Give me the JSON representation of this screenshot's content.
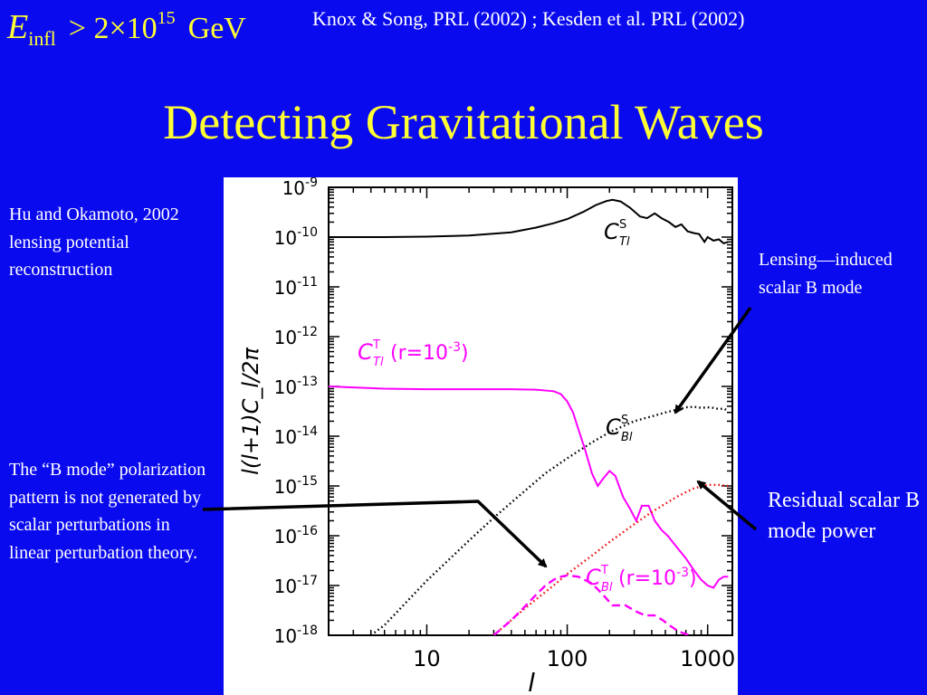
{
  "header": {
    "formula": {
      "symbol": "E",
      "subscript": "infl",
      "relation": "> 2×10",
      "exponent": "15",
      "unit": "GeV"
    },
    "citation": "Knox & Song, PRL (2002) ;  Kesden et al. PRL (2002)",
    "title": "Detecting Gravitational Waves"
  },
  "notes": {
    "hu_okamoto": "Hu and Okamoto, 2002 lensing potential reconstruction",
    "b_mode": " The “B mode” polarization pattern is not generated by scalar perturbations in linear perturbation theory.",
    "lensing": "Lensing—induced scalar B mode",
    "residual": "Residual scalar B mode power"
  },
  "colors": {
    "background": "#0a0aee",
    "title": "#ffff33",
    "text": "#ffffff",
    "black": "#000000",
    "magenta": "#ff00ff",
    "red": "#ee1111"
  },
  "chart_data": {
    "type": "line",
    "xlabel": "l",
    "ylabel": "l(l+1)C_l/2π",
    "xscale": "log",
    "yscale": "log",
    "xlim": [
      2,
      1500
    ],
    "ylim": [
      1e-18,
      1e-09
    ],
    "x_ticks": [
      {
        "value": 10,
        "label": "10"
      },
      {
        "value": 100,
        "label": "100"
      },
      {
        "value": 1000,
        "label": "1000"
      }
    ],
    "y_ticks": [
      {
        "value": 1e-09,
        "label": "10^-9"
      },
      {
        "value": 1e-10,
        "label": "10^-10"
      },
      {
        "value": 1e-11,
        "label": "10^-11"
      },
      {
        "value": 1e-12,
        "label": "10^-12"
      },
      {
        "value": 1e-13,
        "label": "10^-13"
      },
      {
        "value": 1e-14,
        "label": "10^-14"
      },
      {
        "value": 1e-15,
        "label": "10^-15"
      },
      {
        "value": 1e-16,
        "label": "10^-16"
      },
      {
        "value": 1e-17,
        "label": "10^-17"
      },
      {
        "value": 1e-18,
        "label": "10^-18"
      }
    ],
    "series": [
      {
        "key": "tt_scalar",
        "name": "C_Tl^S",
        "label_main": "C",
        "label_sup": "S",
        "label_sub": "Tl",
        "label_extra": "",
        "color": "#000000",
        "style": "solid",
        "points": [
          [
            2,
            1e-10
          ],
          [
            5,
            1e-10
          ],
          [
            10,
            1.02e-10
          ],
          [
            20,
            1.08e-10
          ],
          [
            40,
            1.25e-10
          ],
          [
            60,
            1.55e-10
          ],
          [
            80,
            1.9e-10
          ],
          [
            100,
            2.3e-10
          ],
          [
            130,
            3.2e-10
          ],
          [
            160,
            4.4e-10
          ],
          [
            190,
            5.3e-10
          ],
          [
            210,
            5.6e-10
          ],
          [
            240,
            5.2e-10
          ],
          [
            280,
            3.9e-10
          ],
          [
            330,
            2.6e-10
          ],
          [
            370,
            2.4e-10
          ],
          [
            420,
            3e-10
          ],
          [
            470,
            2.4e-10
          ],
          [
            530,
            2e-10
          ],
          [
            590,
            1.6e-10
          ],
          [
            650,
            1.8e-10
          ],
          [
            720,
            1.3e-10
          ],
          [
            800,
            1.2e-10
          ],
          [
            870,
            1.15e-10
          ],
          [
            950,
            8e-11
          ],
          [
            1000,
            1e-10
          ],
          [
            1100,
            8.5e-11
          ],
          [
            1200,
            9e-11
          ],
          [
            1300,
            7.5e-11
          ],
          [
            1400,
            8e-11
          ]
        ]
      },
      {
        "key": "tt_tensor",
        "name": "C_Tl^T (r=10^-3)",
        "label_main": "C",
        "label_sup": "T",
        "label_sub": "Tl",
        "label_extra": "(r=10^-3)",
        "color": "#ff00ff",
        "style": "solid",
        "points": [
          [
            2,
            1e-13
          ],
          [
            5,
            9e-14
          ],
          [
            10,
            8.8e-14
          ],
          [
            20,
            8.8e-14
          ],
          [
            40,
            8.8e-14
          ],
          [
            60,
            8.6e-14
          ],
          [
            80,
            8e-14
          ],
          [
            90,
            7e-14
          ],
          [
            100,
            5e-14
          ],
          [
            110,
            3e-14
          ],
          [
            120,
            1.4e-14
          ],
          [
            135,
            5e-15
          ],
          [
            150,
            1.8e-15
          ],
          [
            165,
            1e-15
          ],
          [
            180,
            1.4e-15
          ],
          [
            200,
            2e-15
          ],
          [
            220,
            1.6e-15
          ],
          [
            250,
            6e-16
          ],
          [
            280,
            3.5e-16
          ],
          [
            310,
            2e-16
          ],
          [
            340,
            4e-16
          ],
          [
            380,
            4e-16
          ],
          [
            420,
            2e-16
          ],
          [
            470,
            1.3e-16
          ],
          [
            520,
            1e-16
          ],
          [
            600,
            6e-17
          ],
          [
            700,
            3.5e-17
          ],
          [
            800,
            2e-17
          ],
          [
            900,
            1.3e-17
          ],
          [
            1000,
            1e-17
          ],
          [
            1100,
            9e-18
          ],
          [
            1200,
            1.3e-17
          ],
          [
            1300,
            1.5e-17
          ],
          [
            1400,
            1.5e-17
          ]
        ]
      },
      {
        "key": "bb_lensing",
        "name": "C_Bl^S",
        "label_main": "C",
        "label_sup": "S",
        "label_sub": "Bl",
        "label_extra": "",
        "color": "#000000",
        "style": "dotted",
        "points": [
          [
            4,
            1e-18
          ],
          [
            5,
            1.6e-18
          ],
          [
            10,
            1.25e-17
          ],
          [
            20,
            8e-17
          ],
          [
            30,
            2.3e-16
          ],
          [
            50,
            8e-16
          ],
          [
            70,
            1.8e-15
          ],
          [
            100,
            3.6e-15
          ],
          [
            150,
            7.5e-15
          ],
          [
            200,
            1.2e-14
          ],
          [
            300,
            2e-14
          ],
          [
            400,
            2.5e-14
          ],
          [
            500,
            3e-14
          ],
          [
            600,
            3.4e-14
          ],
          [
            700,
            3.8e-14
          ],
          [
            800,
            3.9e-14
          ],
          [
            900,
            3.7e-14
          ],
          [
            1000,
            3.8e-14
          ],
          [
            1100,
            3.7e-14
          ],
          [
            1200,
            3.5e-14
          ],
          [
            1300,
            3.6e-14
          ],
          [
            1400,
            3.2e-14
          ]
        ]
      },
      {
        "key": "bb_residual",
        "name": "Residual scalar B mode",
        "label_main": "",
        "label_sup": "",
        "label_sub": "",
        "label_extra": "",
        "color": "#ee1111",
        "style": "dotted",
        "points": [
          [
            30,
            1e-18
          ],
          [
            50,
            3.5e-18
          ],
          [
            80,
            1e-17
          ],
          [
            100,
            1.7e-17
          ],
          [
            150,
            4e-17
          ],
          [
            200,
            7.5e-17
          ],
          [
            300,
            1.7e-16
          ],
          [
            400,
            3e-16
          ],
          [
            500,
            4.4e-16
          ],
          [
            600,
            6e-16
          ],
          [
            700,
            7.5e-16
          ],
          [
            800,
            9e-16
          ],
          [
            1000,
            1.05e-15
          ],
          [
            1200,
            1.05e-15
          ],
          [
            1400,
            1e-15
          ]
        ]
      },
      {
        "key": "bb_tensor",
        "name": "C_Bl^T (r=10^-3)",
        "label_main": "C",
        "label_sup": "T",
        "label_sub": "Bl",
        "label_extra": "(r=10^-3)",
        "color": "#ff00ff",
        "style": "dashed",
        "points": [
          [
            30,
            1e-18
          ],
          [
            40,
            2e-18
          ],
          [
            50,
            3.8e-18
          ],
          [
            60,
            6.5e-18
          ],
          [
            70,
            1e-17
          ],
          [
            80,
            1.3e-17
          ],
          [
            90,
            1.5e-17
          ],
          [
            100,
            1.6e-17
          ],
          [
            120,
            1.5e-17
          ],
          [
            150,
            1.1e-17
          ],
          [
            180,
            6.5e-18
          ],
          [
            210,
            4e-18
          ],
          [
            260,
            4e-18
          ],
          [
            310,
            3e-18
          ],
          [
            360,
            2.5e-18
          ],
          [
            420,
            2.5e-18
          ],
          [
            480,
            2e-18
          ],
          [
            550,
            1.5e-18
          ],
          [
            620,
            1.2e-18
          ],
          [
            700,
            1.05e-18
          ],
          [
            750,
            1e-18
          ]
        ]
      }
    ]
  }
}
